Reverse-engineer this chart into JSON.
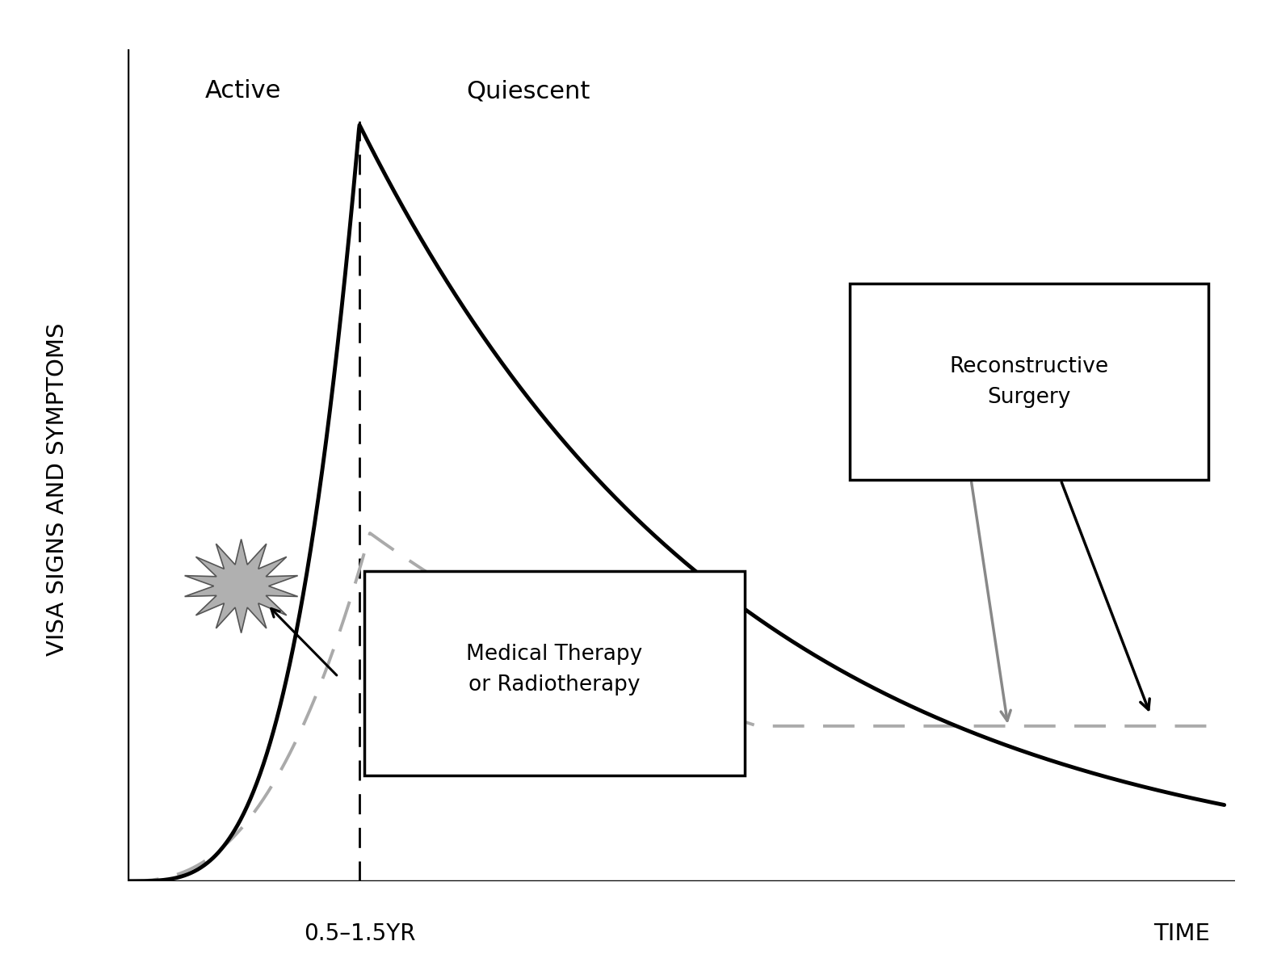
{
  "ylabel": "VISA SIGNS AND SYMPTOMS",
  "xlabel_time": "TIME",
  "xlabel_yr": "0.5–1.5YR",
  "label_active": "Active",
  "label_quiescent": "Quiescent",
  "label_med": "Medical Therapy\nor Radiotherapy",
  "label_recon": "Reconstructive\nSurgery",
  "main_curve_color": "#000000",
  "dashed_curve_color": "#aaaaaa",
  "background_color": "#ffffff",
  "axis_color": "#000000",
  "peak_x": 2.2,
  "xlim": [
    0,
    10.5
  ],
  "ylim": [
    0,
    11.0
  ]
}
